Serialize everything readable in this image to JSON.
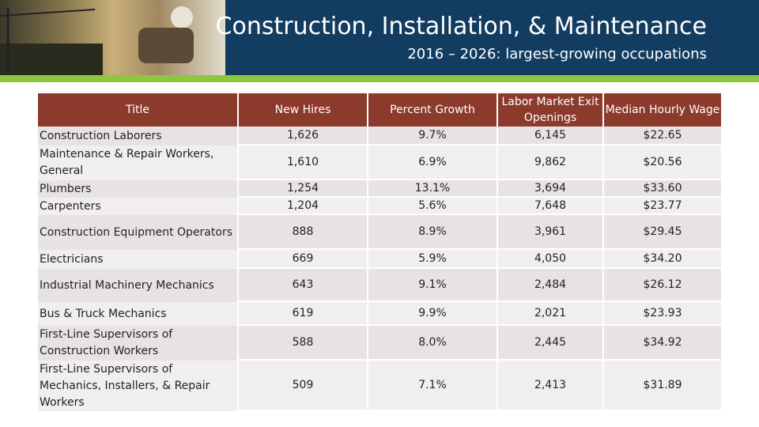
{
  "header": {
    "title": "Construction, Installation, & Maintenance",
    "subtitle": "2016 – 2026: largest-growing occupations"
  },
  "table": {
    "columns": [
      "Title",
      "New Hires",
      "Percent Growth",
      "Labor Market Exit Openings",
      "Median Hourly Wage"
    ],
    "rows": [
      [
        "Construction Laborers",
        "1,626",
        "9.7%",
        "6,145",
        "$22.65"
      ],
      [
        "Maintenance & Repair Workers, General",
        "1,610",
        "6.9%",
        "9,862",
        "$20.56"
      ],
      [
        "Plumbers",
        "1,254",
        "13.1%",
        "3,694",
        "$33.60"
      ],
      [
        "Carpenters",
        "1,204",
        "5.6%",
        "7,648",
        "$23.77"
      ],
      [
        "Construction Equipment Operators",
        "888",
        "8.9%",
        "3,961",
        "$29.45"
      ],
      [
        "Electricians",
        "669",
        "5.9%",
        "4,050",
        "$34.20"
      ],
      [
        "Industrial Machinery Mechanics",
        "643",
        "9.1%",
        "2,484",
        "$26.12"
      ],
      [
        "Bus & Truck Mechanics",
        "619",
        "9.9%",
        "2,021",
        "$23.93"
      ],
      [
        "First-Line Supervisors of Construction Workers",
        "588",
        "8.0%",
        "2,445",
        "$34.92"
      ],
      [
        "First-Line Supervisors of Mechanics, Installers, & Repair Workers",
        "509",
        "7.1%",
        "2,413",
        "$31.89"
      ]
    ]
  }
}
